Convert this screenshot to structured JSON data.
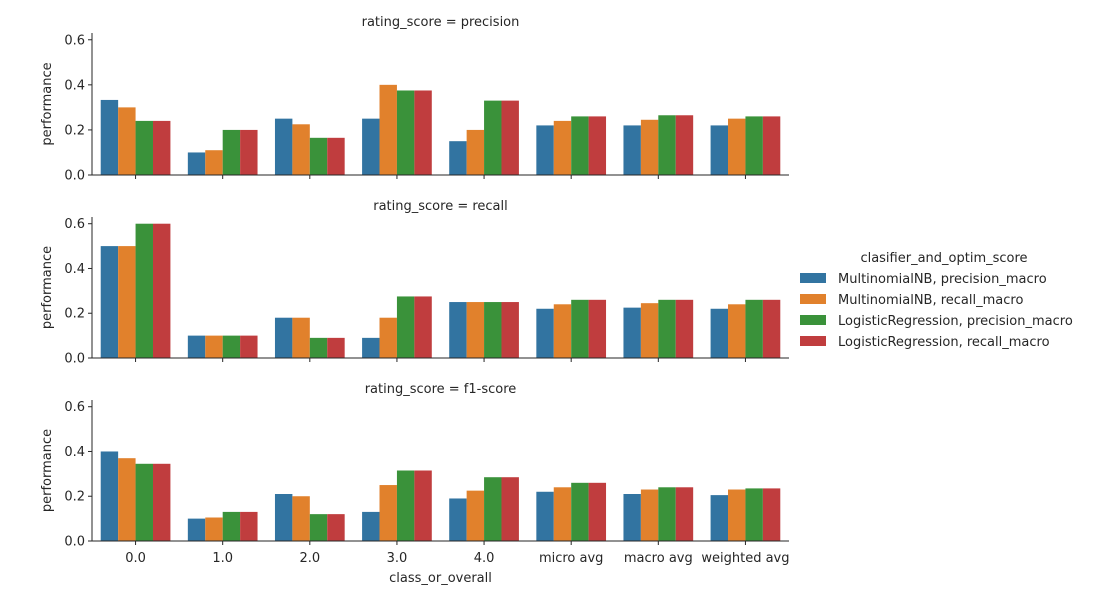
{
  "chart_data": {
    "type": "bar",
    "xlabel": "class_or_overall",
    "ylabel": "performance",
    "ylim": [
      0,
      0.63
    ],
    "yticks": [
      0.0,
      0.2,
      0.4,
      0.6
    ],
    "ytick_labels": [
      "0.0",
      "0.2",
      "0.4",
      "0.6"
    ],
    "grid": false,
    "legend_position": "right",
    "legend_title": "clasifier_and_optim_score",
    "categories": [
      "0.0",
      "1.0",
      "2.0",
      "3.0",
      "4.0",
      "micro avg",
      "macro avg",
      "weighted avg"
    ],
    "series_names": [
      "MultinomialNB, precision_macro",
      "MultinomialNB, recall_macro",
      "LogisticRegression, precision_macro",
      "LogisticRegression, recall_macro"
    ],
    "colors": [
      "#3274a1",
      "#e1812c",
      "#3a923a",
      "#c03d3e"
    ],
    "facets": [
      {
        "title": "rating_score = precision",
        "series": [
          {
            "name": "MultinomialNB, precision_macro",
            "values": [
              0.333,
              0.1,
              0.25,
              0.25,
              0.15,
              0.22,
              0.22,
              0.22
            ]
          },
          {
            "name": "MultinomialNB, recall_macro",
            "values": [
              0.3,
              0.11,
              0.225,
              0.4,
              0.2,
              0.24,
              0.245,
              0.25
            ]
          },
          {
            "name": "LogisticRegression, precision_macro",
            "values": [
              0.24,
              0.2,
              0.165,
              0.375,
              0.33,
              0.26,
              0.265,
              0.26
            ]
          },
          {
            "name": "LogisticRegression, recall_macro",
            "values": [
              0.24,
              0.2,
              0.165,
              0.375,
              0.33,
              0.26,
              0.265,
              0.26
            ]
          }
        ]
      },
      {
        "title": "rating_score = recall",
        "series": [
          {
            "name": "MultinomialNB, precision_macro",
            "values": [
              0.5,
              0.1,
              0.18,
              0.09,
              0.25,
              0.22,
              0.225,
              0.22
            ]
          },
          {
            "name": "MultinomialNB, recall_macro",
            "values": [
              0.5,
              0.1,
              0.18,
              0.18,
              0.25,
              0.24,
              0.245,
              0.24
            ]
          },
          {
            "name": "LogisticRegression, precision_macro",
            "values": [
              0.6,
              0.1,
              0.09,
              0.275,
              0.25,
              0.26,
              0.26,
              0.26
            ]
          },
          {
            "name": "LogisticRegression, recall_macro",
            "values": [
              0.6,
              0.1,
              0.09,
              0.275,
              0.25,
              0.26,
              0.26,
              0.26
            ]
          }
        ]
      },
      {
        "title": "rating_score = f1-score",
        "series": [
          {
            "name": "MultinomialNB, precision_macro",
            "values": [
              0.4,
              0.1,
              0.21,
              0.13,
              0.19,
              0.22,
              0.21,
              0.205
            ]
          },
          {
            "name": "MultinomialNB, recall_macro",
            "values": [
              0.37,
              0.105,
              0.2,
              0.25,
              0.225,
              0.24,
              0.23,
              0.23
            ]
          },
          {
            "name": "LogisticRegression, precision_macro",
            "values": [
              0.345,
              0.13,
              0.12,
              0.315,
              0.285,
              0.26,
              0.24,
              0.235
            ]
          },
          {
            "name": "LogisticRegression, recall_macro",
            "values": [
              0.345,
              0.13,
              0.12,
              0.315,
              0.285,
              0.26,
              0.24,
              0.235
            ]
          }
        ]
      }
    ]
  }
}
